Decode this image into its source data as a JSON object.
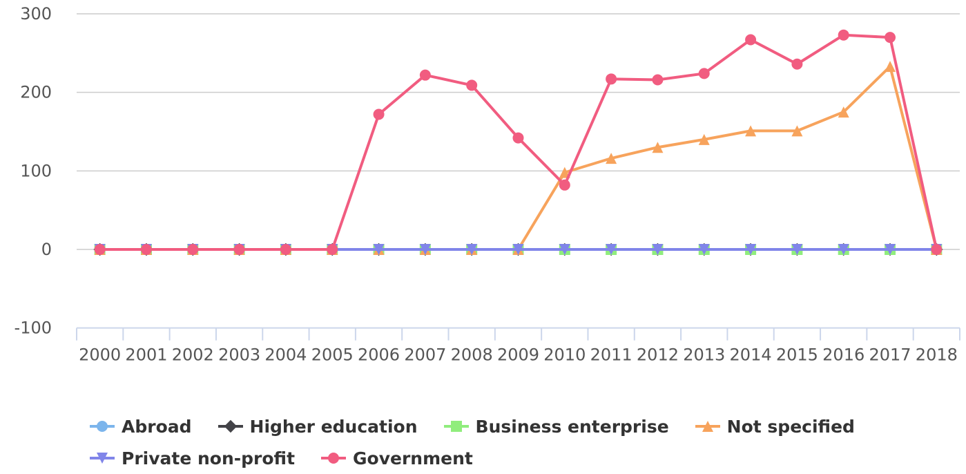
{
  "chart_data": {
    "type": "line",
    "x": [
      "2000",
      "2001",
      "2002",
      "2003",
      "2004",
      "2005",
      "2006",
      "2007",
      "2008",
      "2009",
      "2010",
      "2011",
      "2012",
      "2013",
      "2014",
      "2015",
      "2016",
      "2017",
      "2018"
    ],
    "yticks": [
      "300",
      "200",
      "100",
      "0",
      "-100"
    ],
    "ylim": [
      -100,
      300
    ],
    "grid": true,
    "legend_position": "bottom",
    "series": [
      {
        "name": "Abroad",
        "color": "#7cb5ec",
        "marker": "circle",
        "values": [
          0,
          0,
          0,
          0,
          0,
          0,
          0,
          0,
          0,
          0,
          0,
          0,
          0,
          0,
          0,
          0,
          0,
          0,
          0
        ]
      },
      {
        "name": "Higher education",
        "color": "#434348",
        "marker": "diamond",
        "values": [
          0,
          0,
          0,
          0,
          0,
          0,
          0,
          0,
          0,
          0,
          0,
          0,
          0,
          0,
          0,
          0,
          0,
          0,
          0
        ]
      },
      {
        "name": "Business enterprise",
        "color": "#90ed7d",
        "marker": "square",
        "values": [
          0,
          0,
          0,
          0,
          0,
          0,
          0,
          0,
          0,
          0,
          0,
          0,
          0,
          0,
          0,
          0,
          0,
          0,
          0
        ]
      },
      {
        "name": "Not specified",
        "color": "#f7a35c",
        "marker": "triangle",
        "values": [
          0,
          0,
          0,
          0,
          0,
          0,
          0,
          0,
          0,
          0,
          98,
          116,
          130,
          140,
          151,
          151,
          175,
          233,
          0
        ]
      },
      {
        "name": "Private non-profit",
        "color": "#8085e9",
        "marker": "triangle-down",
        "values": [
          0,
          0,
          0,
          0,
          0,
          0,
          0,
          0,
          0,
          0,
          0,
          0,
          0,
          0,
          0,
          0,
          0,
          0,
          0
        ]
      },
      {
        "name": "Government",
        "color": "#f15c80",
        "marker": "circle",
        "values": [
          0,
          0,
          0,
          0,
          0,
          0,
          172,
          222,
          209,
          142,
          82,
          217,
          216,
          224,
          267,
          236,
          273,
          270,
          0
        ]
      }
    ]
  },
  "legend": {
    "rows": [
      [
        {
          "series": 0,
          "label": "Abroad"
        },
        {
          "series": 1,
          "label": "Higher education"
        },
        {
          "series": 2,
          "label": "Business enterprise"
        },
        {
          "series": 3,
          "label": "Not specified"
        }
      ],
      [
        {
          "series": 4,
          "label": "Private non-profit"
        },
        {
          "series": 5,
          "label": "Government"
        }
      ]
    ]
  }
}
